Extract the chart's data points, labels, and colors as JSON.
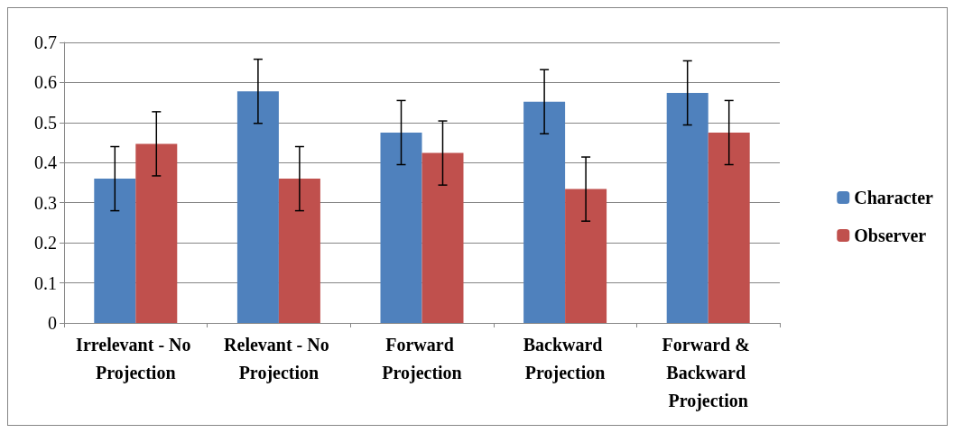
{
  "chart_data": {
    "type": "bar",
    "categories": [
      "Irrelevant - No Projection",
      "Relevant - No Projection",
      "Forward Projection",
      "Backward Projection",
      "Forward & Backward Projection"
    ],
    "series": [
      {
        "name": "Character",
        "color": "#4f81bd",
        "values": [
          0.36,
          0.578,
          0.475,
          0.552,
          0.574
        ],
        "errors": [
          0.08,
          0.08,
          0.08,
          0.08,
          0.08
        ]
      },
      {
        "name": "Observer",
        "color": "#c0504d",
        "values": [
          0.447,
          0.36,
          0.424,
          0.334,
          0.475
        ],
        "errors": [
          0.08,
          0.08,
          0.08,
          0.08,
          0.08
        ]
      }
    ],
    "ylim": [
      0,
      0.7
    ],
    "yticks": [
      0,
      0.1,
      0.2,
      0.3,
      0.4,
      0.5,
      0.6,
      0.7
    ],
    "grid": "y",
    "legend": "right"
  }
}
